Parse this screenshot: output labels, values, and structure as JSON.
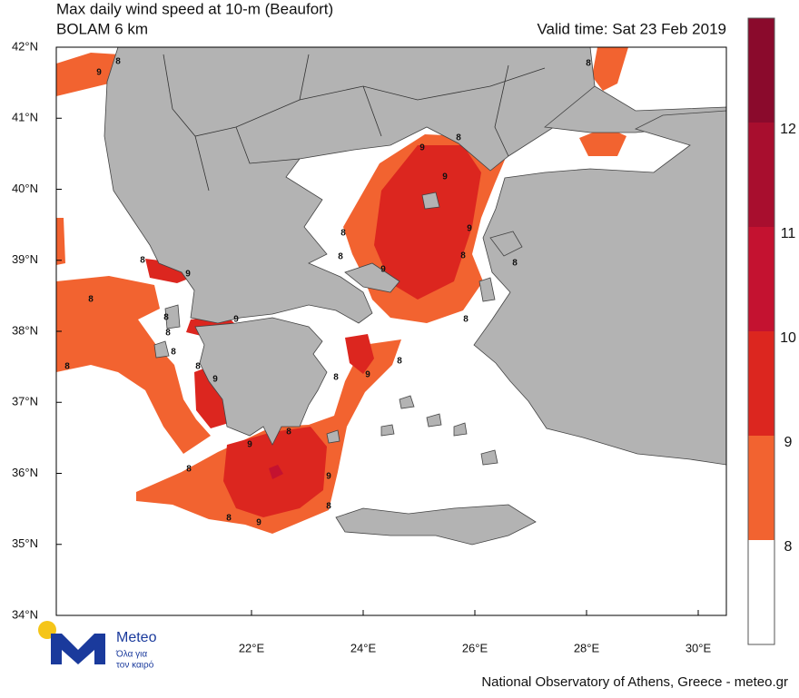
{
  "header": {
    "title": "Max daily wind speed at 10-m (Beaufort)",
    "subtitle": "BOLAM 6 km",
    "valid_time": "Valid time: Sat 23 Feb 2019"
  },
  "map": {
    "lat_ticks": [
      "42°N",
      "41°N",
      "40°N",
      "39°N",
      "38°N",
      "37°N",
      "36°N",
      "35°N",
      "34°N"
    ],
    "lon_ticks": [
      "22°E",
      "24°E",
      "26°E",
      "28°E",
      "30°E"
    ],
    "contour_labels": [
      "9",
      "8",
      "8",
      "9",
      "8",
      "9",
      "9",
      "8",
      "8",
      "9",
      "8",
      "9",
      "8",
      "8",
      "8",
      "8",
      "9",
      "8",
      "8",
      "8",
      "8",
      "9",
      "8",
      "8",
      "9",
      "8",
      "9",
      "8",
      "8",
      "9",
      "8",
      "8",
      "9"
    ]
  },
  "legend": {
    "labels": [
      12,
      11,
      10,
      9,
      8
    ],
    "colors": [
      "#8a0a2c",
      "#a80e2e",
      "#c41230",
      "#dc261f",
      "#f26330",
      "#ffffff"
    ]
  },
  "logo": {
    "name": "Meteo",
    "tagline_1": "Όλα για",
    "tagline_2": "τον καιρό"
  },
  "footer": {
    "credit": "National Observatory of Athens, Greece - meteo.gr"
  }
}
